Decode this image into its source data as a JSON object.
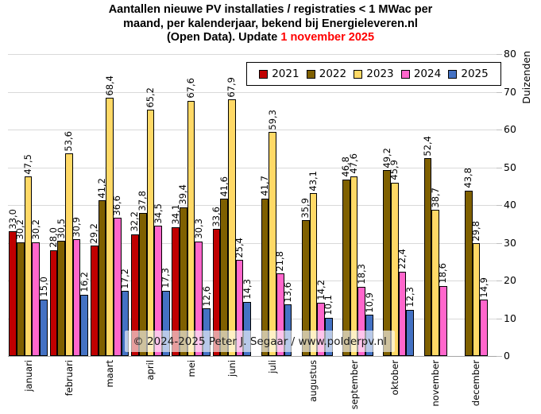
{
  "title": {
    "line1": "Aantallen nieuwe PV installaties / registraties < 1 MWac per",
    "line2": "maand, per kalenderjaar, bekend bij Energieleveren.nl",
    "line3_prefix": "(Open Data). Update ",
    "line3_date": "1 november 2025"
  },
  "y_axis": {
    "title": "Duizenden",
    "ticks": [
      0,
      10,
      20,
      30,
      40,
      50,
      60,
      70,
      80
    ]
  },
  "watermark": {
    "text": "© 2024-2025 Peter J. Segaar / www.polderpv.nl"
  },
  "colors": {
    "gridline": "#d9d9d9",
    "axis_line": "#a6a6a6",
    "tick_mark": "#bfbfbf",
    "bar_border": "#000000",
    "title_date": "#ff0000"
  },
  "chart_data": {
    "type": "bar",
    "title": "Aantallen nieuwe PV installaties / registraties < 1 MWac per maand, per kalenderjaar, bekend bij Energieleveren.nl (Open Data). Update 1 november 2025",
    "xlabel": "",
    "ylabel": "Duizenden",
    "ylim": [
      0,
      80
    ],
    "grid": true,
    "legend_position": "top",
    "decimal_separator": ",",
    "categories": [
      "januari",
      "februari",
      "maart",
      "april",
      "mei",
      "juni",
      "juli",
      "augustus",
      "september",
      "oktober",
      "november",
      "december"
    ],
    "series": [
      {
        "name": "2021",
        "color": "#c00000",
        "values": [
          33.0,
          28.0,
          29.2,
          32.2,
          34.1,
          33.6,
          null,
          null,
          null,
          null,
          null,
          null
        ]
      },
      {
        "name": "2022",
        "color": "#7f6000",
        "values": [
          30.2,
          30.5,
          41.2,
          37.8,
          39.4,
          41.6,
          41.7,
          35.9,
          46.8,
          49.2,
          52.4,
          43.8
        ]
      },
      {
        "name": "2023",
        "color": "#ffd966",
        "values": [
          47.5,
          53.6,
          68.4,
          65.2,
          67.6,
          67.9,
          59.3,
          43.1,
          47.6,
          45.9,
          38.7,
          29.8
        ]
      },
      {
        "name": "2024",
        "color": "#ff66cc",
        "values": [
          30.2,
          30.9,
          36.6,
          34.5,
          30.3,
          25.4,
          21.8,
          14.2,
          18.3,
          22.4,
          18.6,
          14.9
        ]
      },
      {
        "name": "2025",
        "color": "#4472c4",
        "values": [
          15.0,
          16.2,
          17.2,
          17.3,
          12.6,
          14.3,
          13.6,
          10.1,
          10.9,
          12.3,
          null,
          null
        ]
      }
    ]
  }
}
